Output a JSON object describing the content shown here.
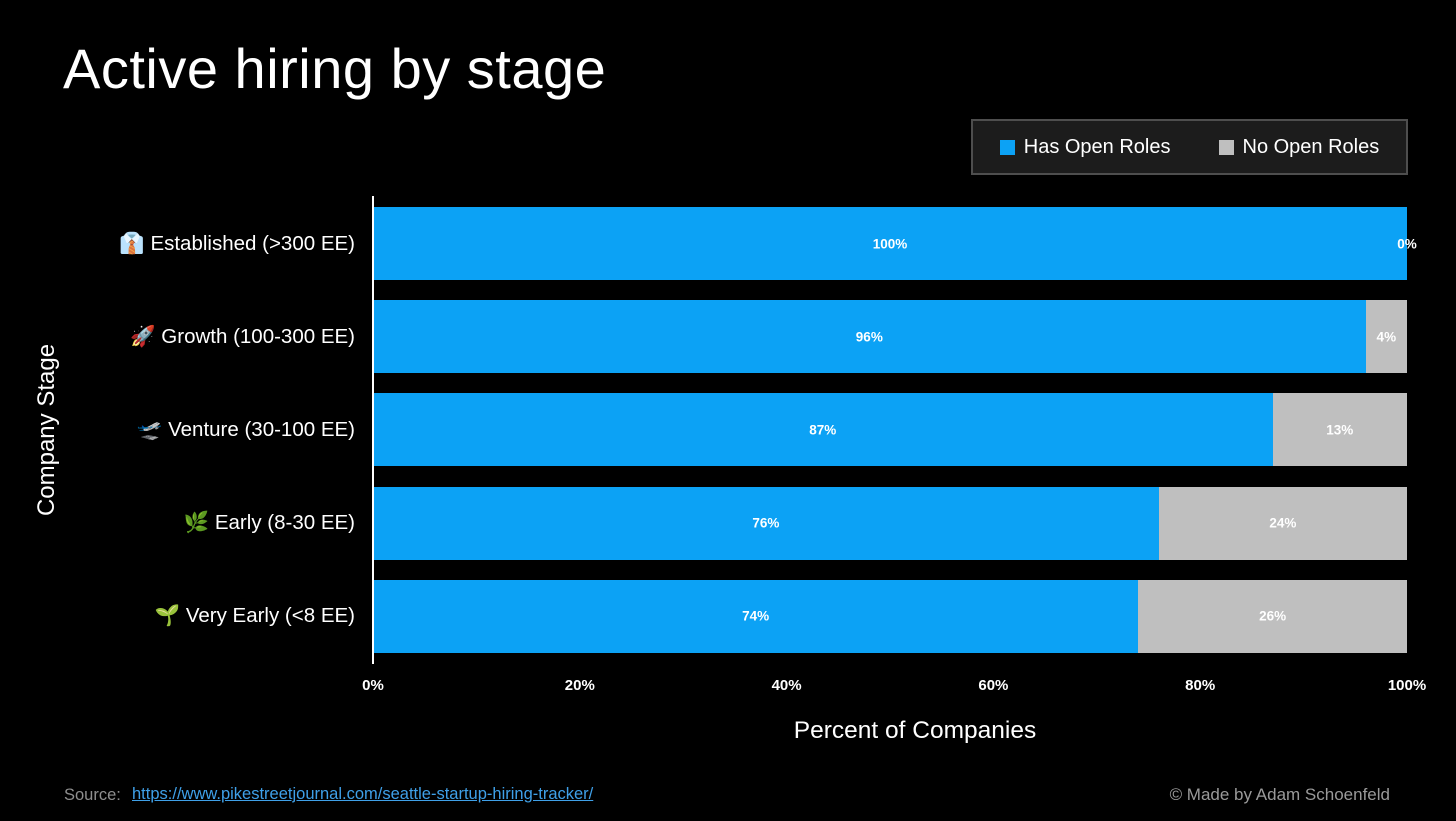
{
  "title": "Active hiring by stage",
  "legend": {
    "items": [
      {
        "label": "Has Open Roles",
        "color": "#0ca2f5"
      },
      {
        "label": "No Open Roles",
        "color": "#bfbfbf"
      }
    ]
  },
  "chart_data": {
    "type": "bar",
    "orientation": "horizontal",
    "stacked": true,
    "title": "Active hiring by stage",
    "xlabel": "Percent of Companies",
    "ylabel": "Company Stage",
    "xlim": [
      0,
      100
    ],
    "x_ticks": [
      "0%",
      "20%",
      "40%",
      "60%",
      "80%",
      "100%"
    ],
    "grid": false,
    "legend_position": "top-right",
    "category_emojis": [
      "👔",
      "🚀",
      "🛫",
      "🌿",
      "🌱"
    ],
    "categories": [
      "Established (>300 EE)",
      "Growth (100-300 EE)",
      "Venture (30-100 EE)",
      "Early (8-30 EE)",
      "Very Early (<8 EE)"
    ],
    "series": [
      {
        "name": "Has Open Roles",
        "color": "#0ca2f5",
        "values": [
          100,
          96,
          87,
          76,
          74
        ]
      },
      {
        "name": "No Open Roles",
        "color": "#bfbfbf",
        "values": [
          0,
          4,
          13,
          24,
          26
        ]
      }
    ],
    "bar_labels": [
      [
        "100%",
        "0%"
      ],
      [
        "96%",
        "4%"
      ],
      [
        "87%",
        "13%"
      ],
      [
        "76%",
        "24%"
      ],
      [
        "74%",
        "26%"
      ]
    ]
  },
  "footer": {
    "source_label": "Source:",
    "source_link_text": "https://www.pikestreetjournal.com/seattle-startup-hiring-tracker/",
    "source_link_href": "https://www.pikestreetjournal.com/seattle-startup-hiring-tracker/",
    "credit": "© Made by Adam Schoenfeld"
  },
  "colors": {
    "background": "#000000",
    "bar_blue": "#0ca2f5",
    "bar_gray": "#bfbfbf",
    "legend_bg": "#1c1c1c",
    "legend_border": "#4e4e4e",
    "axis_line": "#ffffff",
    "link_blue": "#3fa0e8",
    "muted_text": "#9a9a9a"
  }
}
